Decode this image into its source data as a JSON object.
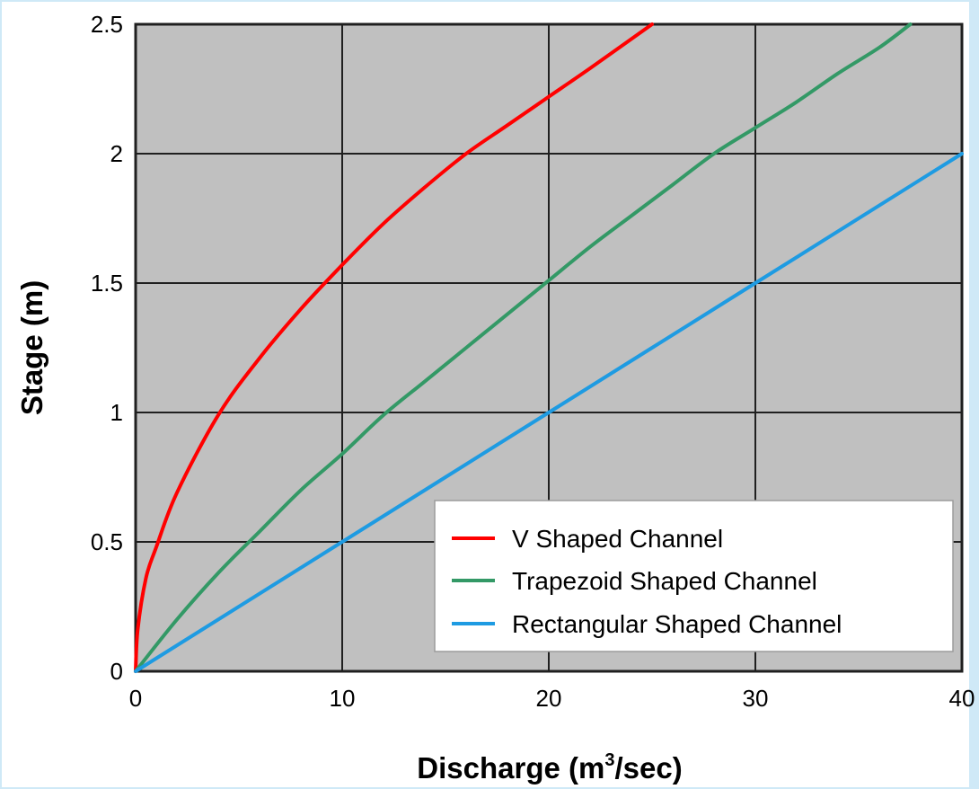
{
  "page": {
    "background": "#cfe9f7"
  },
  "chart_data": {
    "type": "line",
    "title": "",
    "xlabel_main": "Discharge (m",
    "xlabel_sup": "3",
    "xlabel_end": "/sec)",
    "ylabel": "Stage (m)",
    "xlim": [
      0,
      40
    ],
    "ylim": [
      0,
      2.5
    ],
    "x_ticks": [
      0,
      10,
      20,
      30,
      40
    ],
    "y_ticks": [
      0,
      0.5,
      1,
      1.5,
      2,
      2.5
    ],
    "x_tick_labels": [
      "0",
      "10",
      "20",
      "30",
      "40"
    ],
    "y_tick_labels": [
      "0",
      "0.5",
      "1",
      "1.5",
      "2",
      "2.5"
    ],
    "grid": true,
    "plot_background": "#c0c0c0",
    "legend_position": "bottom-right",
    "series": [
      {
        "name": "V Shaped Channel",
        "color": "#ff0000",
        "points": [
          [
            0,
            0
          ],
          [
            0.1,
            0.16
          ],
          [
            0.5,
            0.36
          ],
          [
            1,
            0.48
          ],
          [
            2,
            0.69
          ],
          [
            4,
            0.99
          ],
          [
            6,
            1.21
          ],
          [
            8,
            1.4
          ],
          [
            10,
            1.57
          ],
          [
            12,
            1.73
          ],
          [
            14,
            1.87
          ],
          [
            16,
            2.0
          ],
          [
            18,
            2.11
          ],
          [
            20,
            2.22
          ],
          [
            22,
            2.33
          ],
          [
            25,
            2.5
          ]
        ]
      },
      {
        "name": "Trapezoid Shaped Channel",
        "color": "#339966",
        "points": [
          [
            0,
            0
          ],
          [
            2,
            0.2
          ],
          [
            4,
            0.38
          ],
          [
            6,
            0.54
          ],
          [
            8,
            0.7
          ],
          [
            10,
            0.84
          ],
          [
            12,
            0.99
          ],
          [
            14,
            1.12
          ],
          [
            16,
            1.25
          ],
          [
            18,
            1.38
          ],
          [
            20,
            1.51
          ],
          [
            22,
            1.64
          ],
          [
            24,
            1.76
          ],
          [
            26,
            1.88
          ],
          [
            28,
            2.0
          ],
          [
            30,
            2.1
          ],
          [
            32,
            2.2
          ],
          [
            34,
            2.31
          ],
          [
            36,
            2.41
          ],
          [
            37.5,
            2.5
          ]
        ]
      },
      {
        "name": "Rectangular Shaped Channel",
        "color": "#1e9be2",
        "points": [
          [
            0,
            0
          ],
          [
            10,
            0.5
          ],
          [
            20,
            1.0
          ],
          [
            30,
            1.5
          ],
          [
            40,
            2.0
          ]
        ]
      }
    ]
  }
}
